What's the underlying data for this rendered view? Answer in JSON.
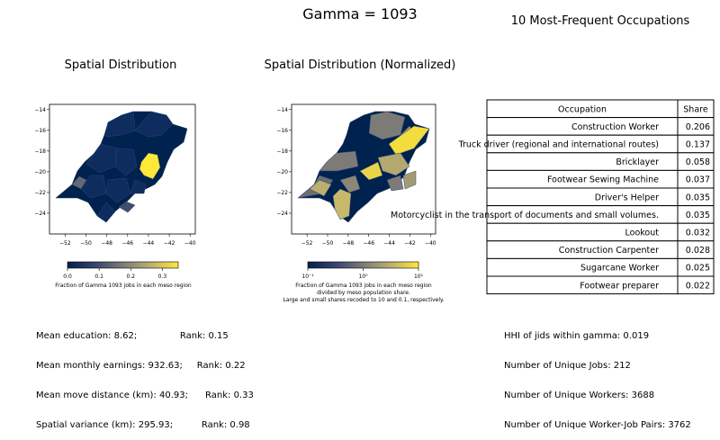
{
  "suptitle": "Gamma = 1093",
  "map_left": {
    "title": "Spatial Distribution",
    "colorbar": {
      "label": "Fraction of Gamma 1093 jobs in each meso region",
      "ticks": [
        "0.0",
        "0.1",
        "0.2",
        "0.3"
      ]
    }
  },
  "map_right": {
    "title": "Spatial Distribution (Normalized)",
    "colorbar": {
      "label_lines": [
        "Fraction of Gamma 1093 jobs in each meso region",
        "divided by meso population share.",
        "Large and small shares recoded to 10 and 0.1, respectively."
      ],
      "ticks": [
        "10⁻¹",
        "10⁰",
        "10¹"
      ]
    }
  },
  "map_axes": {
    "x_ticks": [
      "−52",
      "−50",
      "−48",
      "−46",
      "−44",
      "−42",
      "−40"
    ],
    "y_ticks": [
      "−14",
      "−16",
      "−18",
      "−20",
      "−22",
      "−24"
    ]
  },
  "table": {
    "title": "10 Most-Frequent Occupations",
    "headers": [
      "Occupation",
      "Share"
    ],
    "rows": [
      [
        "Construction Worker",
        "0.206"
      ],
      [
        "Truck driver (regional and international routes)",
        "0.137"
      ],
      [
        "Bricklayer",
        "0.058"
      ],
      [
        "Footwear Sewing Machine",
        "0.037"
      ],
      [
        "Driver's Helper",
        "0.035"
      ],
      [
        "Motorcyclist in the transport of documents and small volumes.",
        "0.035"
      ],
      [
        "Lookout",
        "0.032"
      ],
      [
        "Construction Carpenter",
        "0.028"
      ],
      [
        "Sugarcane Worker",
        "0.025"
      ],
      [
        "Footwear preparer",
        "0.022"
      ]
    ]
  },
  "stats_left": [
    "Mean education: 8.62;               Rank: 0.15",
    "Mean monthly earnings: 932.63;     Rank: 0.22",
    "Mean move distance (km): 40.93;      Rank: 0.33",
    "Spatial variance (km): 295.93;          Rank: 0.98"
  ],
  "stats_right": [
    "HHI of jids within gamma: 0.019",
    "Number of Unique Jobs: 212",
    "Number of Unique Workers: 3688",
    "Number of Unique Worker-Job Pairs: 3762"
  ],
  "colors": {
    "cividis_low": "#00224e",
    "cividis_mid": "#7c7b78",
    "cividis_high": "#fee838"
  },
  "chart_data": [
    {
      "type": "heatmap",
      "title": "Spatial Distribution",
      "xlim": [
        -53.5,
        -39.5
      ],
      "ylim": [
        -26,
        -13.5
      ],
      "colorbar_range": [
        0.0,
        0.35
      ],
      "note": "Choropleth of meso regions; one highlighted region near (-44,-19) at the top of the scale, one grey region near (-49.5,-22), the rest near 0."
    },
    {
      "type": "heatmap",
      "title": "Spatial Distribution (Normalized)",
      "xlim": [
        -53.5,
        -39.5
      ],
      "ylim": [
        -26,
        -13.5
      ],
      "colorbar_scale": "log",
      "colorbar_range": [
        0.1,
        10
      ]
    },
    {
      "type": "table",
      "title": "10 Most-Frequent Occupations",
      "categories": [
        "Construction Worker",
        "Truck driver (regional and international routes)",
        "Bricklayer",
        "Footwear Sewing Machine",
        "Driver's Helper",
        "Motorcyclist in the transport of documents and small volumes.",
        "Lookout",
        "Construction Carpenter",
        "Sugarcane Worker",
        "Footwear preparer"
      ],
      "values": [
        0.206,
        0.137,
        0.058,
        0.037,
        0.035,
        0.035,
        0.032,
        0.028,
        0.025,
        0.022
      ]
    }
  ]
}
